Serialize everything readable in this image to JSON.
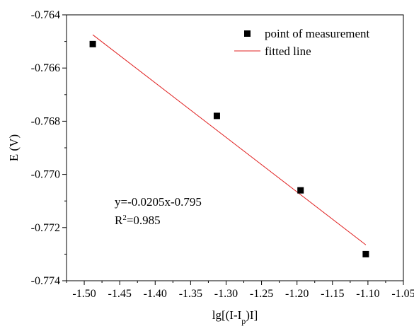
{
  "colors": {
    "axis": "#000000",
    "points": "#000000",
    "fit_line": "#e02020",
    "background": "#ffffff"
  },
  "chart_data": {
    "type": "scatter",
    "title": "",
    "xlabel": "lg[(I-I_p)I]",
    "xlabel_parts": {
      "pre": "lg[(I-I",
      "sub": "p",
      "post": ")I]"
    },
    "ylabel": "E (V)",
    "xlim": [
      -1.525,
      -1.05
    ],
    "ylim": [
      -0.774,
      -0.764
    ],
    "xticks": [
      -1.5,
      -1.45,
      -1.4,
      -1.35,
      -1.3,
      -1.25,
      -1.2,
      -1.15,
      -1.1,
      -1.05
    ],
    "xtick_labels": [
      "-1.50",
      "-1.45",
      "-1.40",
      "-1.35",
      "-1.30",
      "-1.25",
      "-1.20",
      "-1.15",
      "-1.10",
      "-1.05"
    ],
    "yticks": [
      -0.764,
      -0.766,
      -0.768,
      -0.77,
      -0.772,
      -0.774
    ],
    "ytick_labels": [
      "-0.764",
      "-0.766",
      "-0.768",
      "-0.770",
      "-0.772",
      "-0.774"
    ],
    "grid": false,
    "legend_position": "top-right",
    "series": [
      {
        "name": "point of measurement",
        "kind": "scatter",
        "marker": "square",
        "x": [
          -1.488,
          -1.313,
          -1.195,
          -1.103
        ],
        "y": [
          -0.7651,
          -0.7678,
          -0.7706,
          -0.773
        ]
      },
      {
        "name": "fitted line",
        "kind": "line",
        "x": [
          -1.488,
          -1.103
        ],
        "y": [
          -0.76475,
          -0.77265
        ]
      }
    ],
    "annotations": {
      "equation": "y=-0.0205x-0.795",
      "r2_prefix": "R",
      "r2_sup": "2",
      "r2_value": "=0.985"
    }
  }
}
